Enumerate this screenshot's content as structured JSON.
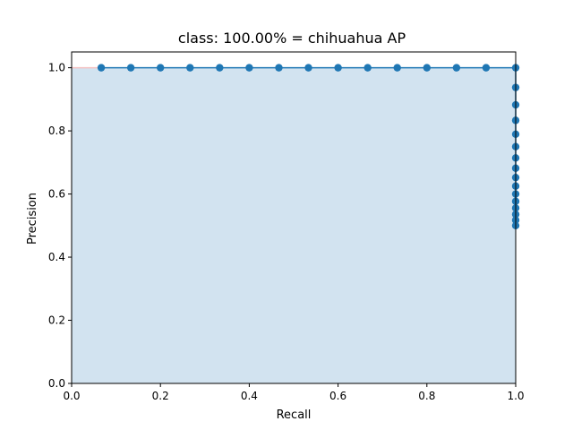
{
  "chart_data": {
    "type": "area",
    "title": "class: 100.00% = chihuahua AP",
    "xlabel": "Recall",
    "ylabel": "Precision",
    "xlim": [
      0.0,
      1.0
    ],
    "ylim": [
      0.0,
      1.05
    ],
    "xticks": [
      "0.0",
      "0.2",
      "0.4",
      "0.6",
      "0.8",
      "1.0"
    ],
    "yticks": [
      "0.0",
      "0.2",
      "0.4",
      "0.6",
      "0.8",
      "1.0"
    ],
    "grid": false,
    "legend": "none",
    "series": [
      {
        "x": [
          0.0667,
          0.1333,
          0.2,
          0.2667,
          0.3333,
          0.4,
          0.4667,
          0.5333,
          0.6,
          0.6667,
          0.7333,
          0.8,
          0.8667,
          0.9333,
          1.0,
          1.0,
          1.0,
          1.0,
          1.0,
          1.0,
          1.0,
          1.0,
          1.0,
          1.0,
          1.0,
          1.0,
          1.0,
          1.0,
          1.0,
          1.0
        ],
        "y": [
          1.0,
          1.0,
          1.0,
          1.0,
          1.0,
          1.0,
          1.0,
          1.0,
          1.0,
          1.0,
          1.0,
          1.0,
          1.0,
          1.0,
          1.0,
          0.9375,
          0.8824,
          0.8333,
          0.7895,
          0.75,
          0.7143,
          0.6818,
          0.6522,
          0.625,
          0.6,
          0.5769,
          0.5556,
          0.5357,
          0.5172,
          0.5
        ]
      }
    ],
    "colors": {
      "line": "#1f77b4",
      "fill": "#d2e3f0",
      "shade": "#f4c2c2"
    }
  }
}
